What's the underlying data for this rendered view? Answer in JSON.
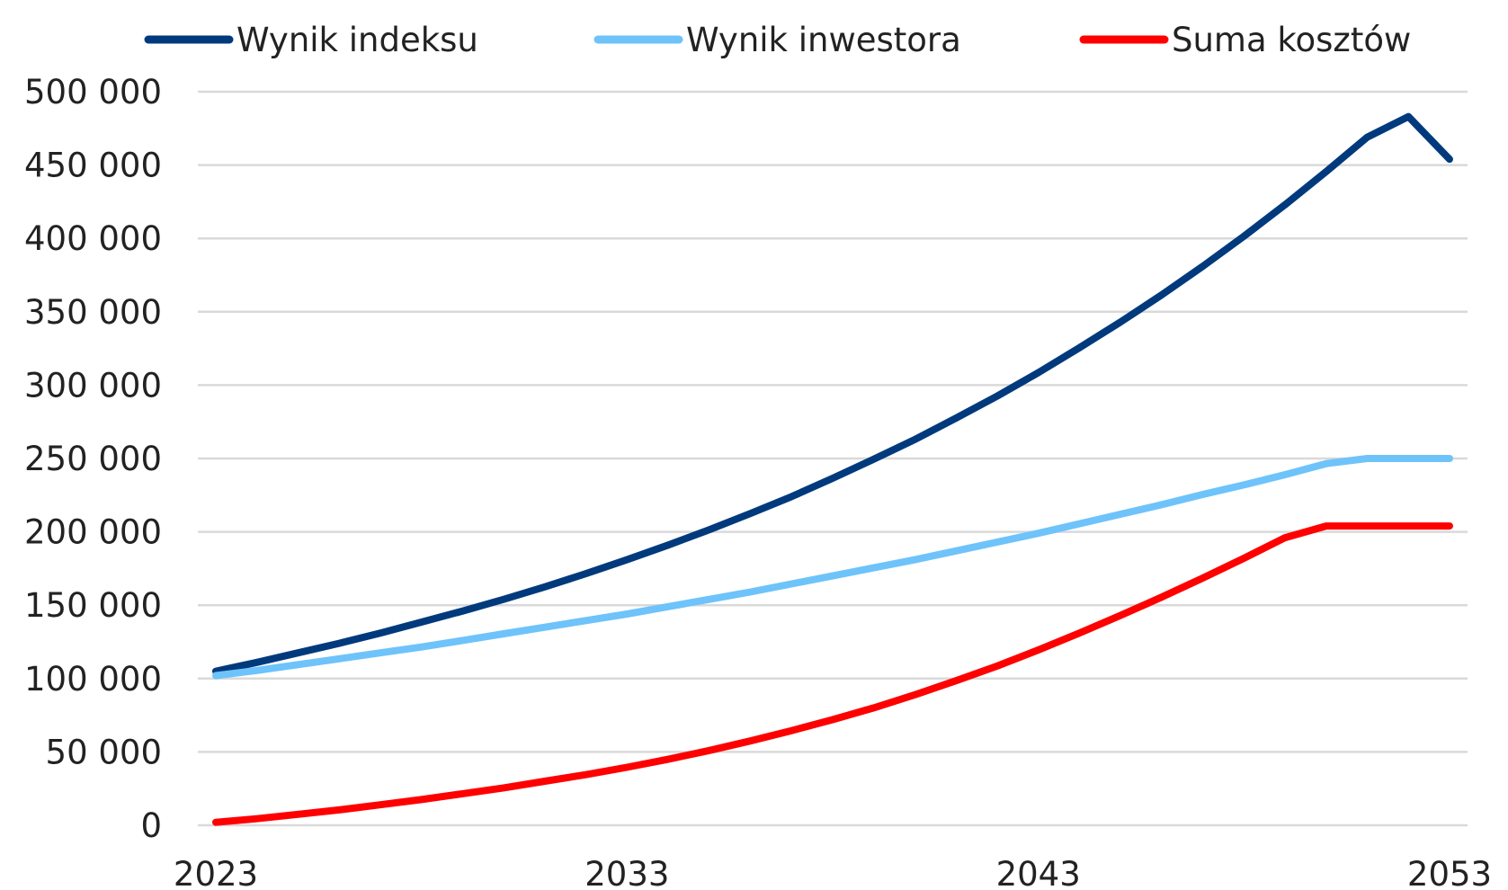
{
  "chart_data": {
    "type": "line",
    "title": "",
    "xlabel": "",
    "ylabel": "",
    "x": [
      2023,
      2024,
      2025,
      2026,
      2027,
      2028,
      2029,
      2030,
      2031,
      2032,
      2033,
      2034,
      2035,
      2036,
      2037,
      2038,
      2039,
      2040,
      2041,
      2042,
      2043,
      2044,
      2045,
      2046,
      2047,
      2048,
      2049,
      2050,
      2051,
      2052,
      2053
    ],
    "xticks": [
      "2023",
      "2033",
      "2043",
      "2053"
    ],
    "xlim": [
      2023,
      2053
    ],
    "ylim": [
      0,
      500000
    ],
    "yticks": [
      0,
      50000,
      100000,
      150000,
      200000,
      250000,
      300000,
      350000,
      400000,
      450000,
      500000
    ],
    "ytick_labels": [
      "0",
      "50 000",
      "100 000",
      "150 000",
      "200 000",
      "250 000",
      "300 000",
      "350 000",
      "400 000",
      "450 000",
      "500 000"
    ],
    "grid": true,
    "legend_position": "top",
    "series": [
      {
        "name": "Wynik indeksu",
        "color": "#003a7d",
        "values": [
          105000,
          111000,
          117500,
          124000,
          131000,
          138500,
          146000,
          154000,
          162500,
          171500,
          181000,
          191000,
          201500,
          212500,
          224000,
          236500,
          249500,
          263000,
          277500,
          292500,
          308500,
          325500,
          343000,
          361500,
          381000,
          401500,
          423000,
          445500,
          469000,
          483000,
          454000
        ]
      },
      {
        "name": "Wynik inwestora",
        "color": "#6ec3fa",
        "values": [
          102000,
          105500,
          109500,
          113500,
          117500,
          121500,
          126000,
          130500,
          135000,
          139500,
          144000,
          149000,
          154000,
          159000,
          164500,
          170000,
          175500,
          181000,
          187000,
          193000,
          199000,
          205500,
          212000,
          218500,
          225500,
          232000,
          239000,
          246500,
          250000,
          250000,
          250000
        ]
      },
      {
        "name": "Suma kosztów",
        "color": "#ff0000",
        "values": [
          2000,
          4500,
          7500,
          10500,
          14000,
          17500,
          21500,
          25500,
          30000,
          34500,
          39500,
          45000,
          51000,
          57500,
          64500,
          72000,
          80000,
          89000,
          98500,
          108500,
          119500,
          131000,
          143000,
          155500,
          168500,
          182000,
          196000,
          204000,
          204000,
          204000,
          204000
        ]
      }
    ]
  }
}
